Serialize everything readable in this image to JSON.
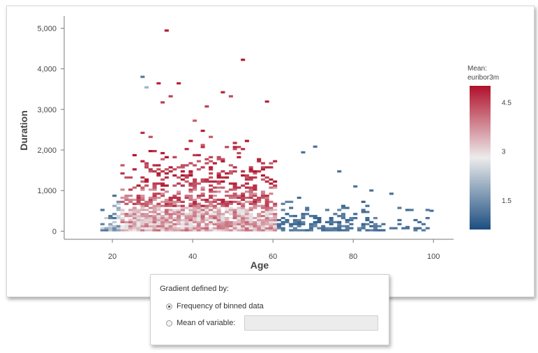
{
  "chart_data": {
    "type": "heatmap",
    "title": "",
    "xlabel": "Age",
    "ylabel": "Duration",
    "xlim": [
      8,
      105
    ],
    "ylim": [
      -200,
      5300
    ],
    "x_ticks": [
      20,
      40,
      60,
      80,
      100
    ],
    "y_ticks": [
      0,
      1000,
      2000,
      3000,
      4000,
      5000
    ],
    "y_tick_labels": [
      "0",
      "1,000",
      "2,000",
      "3,000",
      "4,000",
      "5,000"
    ],
    "bin_width_age": 1,
    "bin_height_duration": 50,
    "legend": {
      "title_line1": "Mean:",
      "title_line2": "euribor3m",
      "ticks": [
        1.5,
        3,
        4.5
      ],
      "tick_labels": [
        "1.5",
        "3",
        "4.5"
      ],
      "range": [
        0.6,
        5.0
      ],
      "color_low": "#1c4e80",
      "color_mid": "#ececec",
      "color_high": "#b0102a",
      "placement": "right"
    },
    "sample_bins": [
      {
        "age": 33,
        "duration": 4920,
        "mean": 4.9
      },
      {
        "age": 52,
        "duration": 4200,
        "mean": 4.9
      },
      {
        "age": 27,
        "duration": 3780,
        "mean": 1.2
      },
      {
        "age": 28,
        "duration": 3520,
        "mean": 2.0
      },
      {
        "age": 31,
        "duration": 3620,
        "mean": 4.8
      },
      {
        "age": 36,
        "duration": 3620,
        "mean": 4.8
      },
      {
        "age": 47,
        "duration": 3400,
        "mean": 4.8
      },
      {
        "age": 58,
        "duration": 3170,
        "mean": 4.8
      },
      {
        "age": 34,
        "duration": 3300,
        "mean": 4.5
      },
      {
        "age": 70,
        "duration": 2060,
        "mean": 1.1
      },
      {
        "age": 67,
        "duration": 1920,
        "mean": 1.1
      },
      {
        "age": 76,
        "duration": 1450,
        "mean": 1.1
      },
      {
        "age": 80,
        "duration": 1080,
        "mean": 1.1
      },
      {
        "age": 84,
        "duration": 980,
        "mean": 1.1
      },
      {
        "age": 89,
        "duration": 900,
        "mean": 1.1
      },
      {
        "age": 99,
        "duration": 480,
        "mean": 1.1
      },
      {
        "age": 93,
        "duration": 80,
        "mean": 1.1
      },
      {
        "age": 17,
        "duration": 500,
        "mean": 1.1
      },
      {
        "age": 24,
        "duration": 300,
        "mean": 2.8
      },
      {
        "age": 45,
        "duration": 300,
        "mean": 4.2
      }
    ]
  },
  "gradient_panel": {
    "title": "Gradient defined by:",
    "option1_label": "Frequency of binned data",
    "option2_label": "Mean of variable:",
    "option1_checked": true,
    "variable_value": ""
  }
}
